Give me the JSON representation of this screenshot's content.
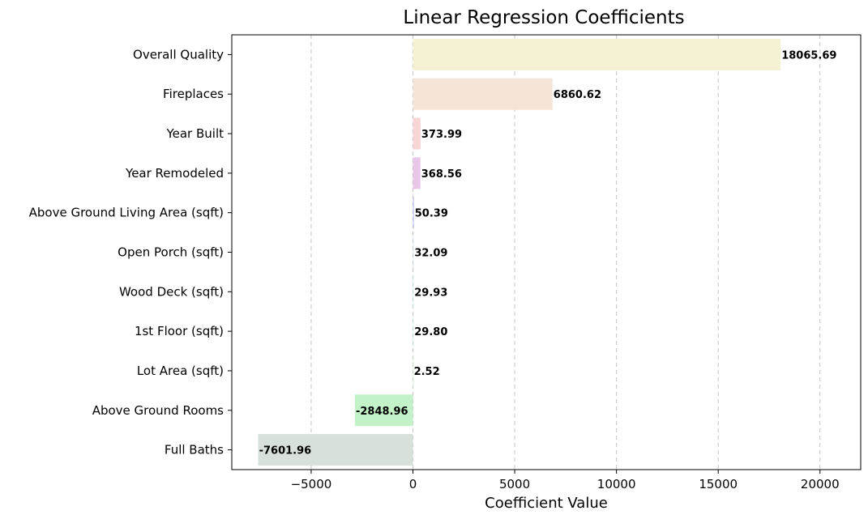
{
  "chart_data": {
    "type": "bar",
    "orientation": "horizontal",
    "title": "Linear Regression Coefficients",
    "xlabel": "Coefficient Value",
    "ylabel": "",
    "categories": [
      "Overall Quality",
      "Fireplaces",
      "Year Built",
      "Year Remodeled",
      "Above Ground Living Area (sqft)",
      "Open Porch (sqft)",
      "Wood Deck (sqft)",
      "1st Floor (sqft)",
      "Lot Area (sqft)",
      "Above Ground Rooms",
      "Full Baths"
    ],
    "values": [
      18065.69,
      6860.62,
      373.99,
      368.56,
      50.39,
      32.09,
      29.93,
      29.8,
      2.52,
      -2848.96,
      -7601.96
    ],
    "data_labels": [
      "18065.69",
      "6860.62",
      "373.99",
      "368.56",
      "50.39",
      "32.09",
      "29.93",
      "29.80",
      "2.52",
      "-2848.96",
      "-7601.96"
    ],
    "bar_colors": [
      "#f5f2d3",
      "#f5e5d8",
      "#f8d6d6",
      "#e8c6e8",
      "#c8c8f0",
      "#d3e2f5",
      "#d3eef5",
      "#d3f2e8",
      "#d8f0d8",
      "#c3f2c8",
      "#d8e0da"
    ],
    "xticks": [
      -5000,
      0,
      5000,
      10000,
      15000,
      20000
    ],
    "xtick_labels": [
      "−5000",
      "0",
      "5000",
      "10000",
      "15000",
      "20000"
    ],
    "xlim": [
      -8900,
      22000
    ],
    "grid": "x-dashed",
    "legend": "none"
  }
}
